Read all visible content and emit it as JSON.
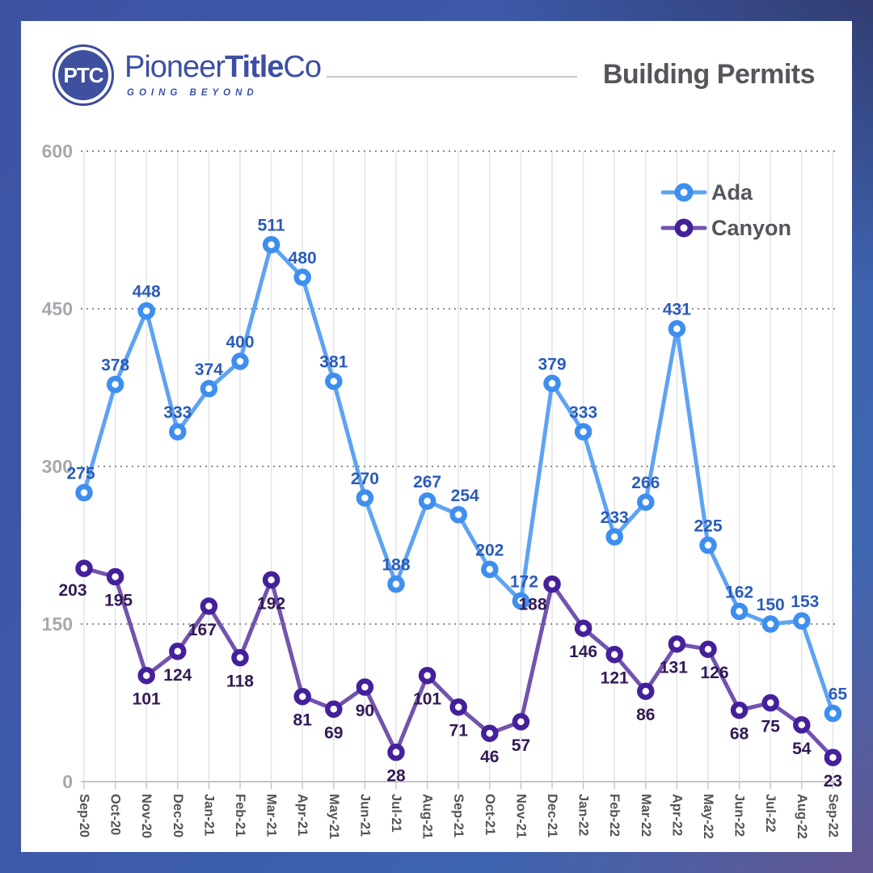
{
  "header": {
    "logo": {
      "monogram": "PTC",
      "brand_pioneer": "Pioneer",
      "brand_title": "Title",
      "brand_co": "Co",
      "tagline": "GOING BEYOND",
      "brand_color": "#3d4fa3"
    },
    "title": "Building Permits"
  },
  "chart_data": {
    "type": "line",
    "title": "Building Permits",
    "categories": [
      "Sep-20",
      "Oct-20",
      "Nov-20",
      "Dec-20",
      "Jan-21",
      "Feb-21",
      "Mar-21",
      "Apr-21",
      "May-21",
      "Jun-21",
      "Jul-21",
      "Aug-21",
      "Sep-21",
      "Oct-21",
      "Nov-21",
      "Dec-21",
      "Jan-22",
      "Feb-22",
      "Mar-22",
      "Apr-22",
      "May-22",
      "Jun-22",
      "Jul-22",
      "Aug-22",
      "Sep-22"
    ],
    "series": [
      {
        "name": "Ada",
        "values": [
          275,
          378,
          448,
          333,
          374,
          400,
          511,
          480,
          381,
          270,
          188,
          267,
          254,
          202,
          172,
          379,
          333,
          233,
          266,
          431,
          225,
          162,
          150,
          153,
          65
        ],
        "line_color": "#5ea3f2",
        "marker_color": "#3e8ef0",
        "label_color": "#2b5cb8",
        "label_side": "above"
      },
      {
        "name": "Canyon",
        "values": [
          203,
          195,
          101,
          124,
          167,
          118,
          192,
          81,
          69,
          90,
          28,
          101,
          71,
          46,
          57,
          188,
          146,
          121,
          86,
          131,
          126,
          68,
          75,
          54,
          23
        ],
        "line_color": "#7253ae",
        "marker_color": "#45209b",
        "label_color": "#331a54",
        "label_side": "below"
      }
    ],
    "ylim": [
      0,
      600
    ],
    "yticks": [
      0,
      150,
      300,
      450,
      600
    ],
    "xlabel": "",
    "ylabel": "",
    "grid": {
      "vertical": "solid",
      "horizontal": "dotted"
    },
    "legend_position": "top-right",
    "axis_text_color": "#a6a8ad",
    "xlabel_text_color": "#54555b",
    "legend_text_color": "#54565c",
    "gridline_color": "#e3e4e8",
    "dotted_line_color": "#8c8d91",
    "axis_line_color": "#c4c5c9"
  }
}
